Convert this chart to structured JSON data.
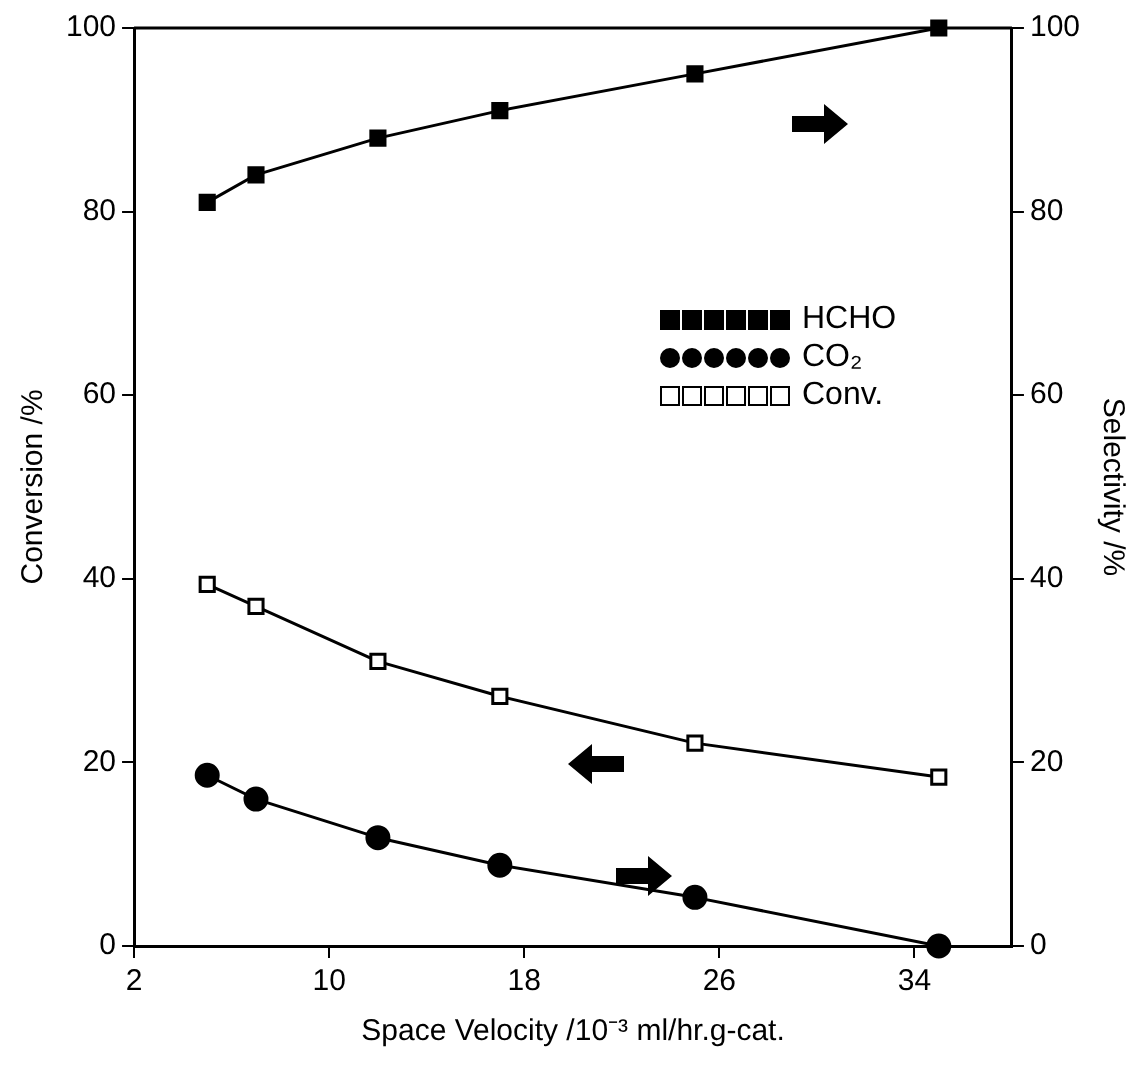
{
  "chart_data": {
    "type": "line",
    "xlabel": "Space Velocity /10⁻³ ml/hr.g-cat.",
    "ylabel": "Conversion /%",
    "y2label": "Selectivity /%",
    "x": [
      5,
      7,
      12,
      17,
      25,
      35
    ],
    "xlim": [
      2,
      38
    ],
    "xticks": [
      2,
      10,
      18,
      26,
      34
    ],
    "ylim": [
      0,
      100
    ],
    "yticks": [
      0,
      20,
      40,
      60,
      80,
      100
    ],
    "y2lim": [
      0,
      100
    ],
    "y2ticks": [
      0,
      20,
      40,
      60,
      80,
      100
    ],
    "grid": false,
    "legend": "right",
    "line_style": "solid",
    "series": [
      {
        "name": "HCHO",
        "color": "#000000",
        "axis": "y2",
        "marker": "square",
        "values": [
          81,
          84,
          88,
          91,
          95,
          100
        ]
      },
      {
        "name": "CO₂",
        "color": "#000000",
        "axis": "y2",
        "marker": "circle",
        "values": [
          18.6,
          16,
          11.8,
          8.8,
          5.3,
          0
        ]
      },
      {
        "name": "Conv.",
        "color": "#000000",
        "axis": "y",
        "marker": "square",
        "values": [
          39.4,
          37,
          31,
          27.2,
          22.1,
          18.4
        ]
      }
    ]
  }
}
